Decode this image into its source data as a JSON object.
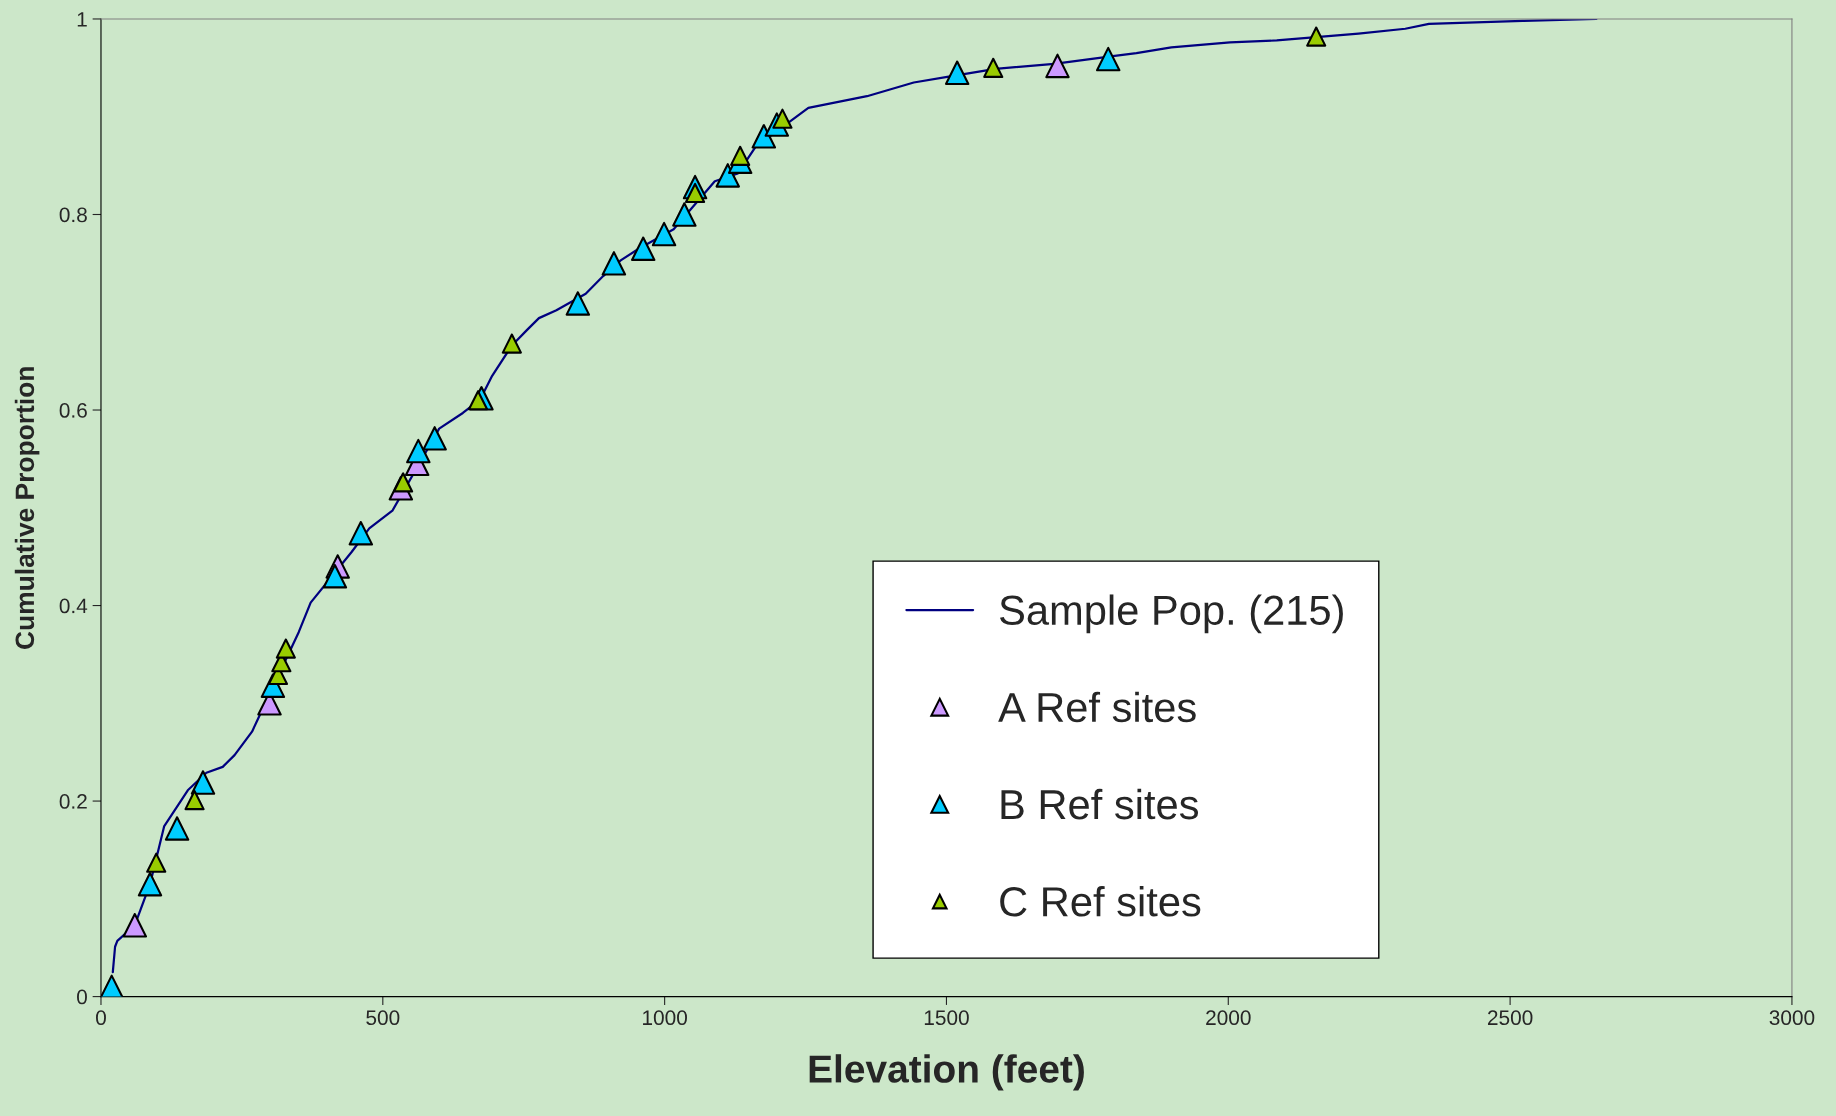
{
  "chart_data": {
    "type": "scatter",
    "xlabel": "Elevation (feet)",
    "ylabel": "Cumulative Proportion",
    "xlim": [
      0,
      3000
    ],
    "xticks": [
      0,
      500,
      1000,
      1500,
      2000,
      2500,
      3000
    ],
    "ylim": [
      0,
      1
    ],
    "yticks": [
      0,
      0.2,
      0.4,
      0.6,
      0.8,
      1
    ],
    "grid": false,
    "legend": "lower right",
    "marker": "triangle",
    "series": [
      {
        "name": "Sample Pop. (215)",
        "type": "line",
        "color": "#000080",
        "marker": "none",
        "line_style": "solid",
        "x": [
          21,
          25,
          29,
          60,
          87,
          112,
          154,
          187,
          216,
          237,
          268,
          351,
          372,
          445,
          476,
          517,
          600,
          642,
          673,
          694,
          729,
          756,
          777,
          808,
          860,
          891,
          922,
          954,
          1016,
          1089,
          1130,
          1161,
          1255,
          1359,
          1442,
          1504,
          1587,
          1691,
          1795,
          1837,
          1899,
          2003,
          2086,
          2231,
          2314,
          2356,
          2522,
          2653
        ],
        "values": [
          0.025,
          0.051,
          0.057,
          0.073,
          0.115,
          0.174,
          0.211,
          0.229,
          0.235,
          0.247,
          0.271,
          0.373,
          0.403,
          0.455,
          0.479,
          0.497,
          0.581,
          0.597,
          0.611,
          0.635,
          0.666,
          0.682,
          0.694,
          0.702,
          0.719,
          0.737,
          0.753,
          0.765,
          0.785,
          0.834,
          0.842,
          0.869,
          0.909,
          0.921,
          0.935,
          0.941,
          0.949,
          0.954,
          0.962,
          0.965,
          0.971,
          0.976,
          0.978,
          0.985,
          0.99,
          0.995,
          0.998,
          1.0
        ]
      },
      {
        "name": "A Ref sites",
        "color": "#cc99ff",
        "x": [
          60,
          299,
          420,
          532,
          561,
          1697
        ],
        "values": [
          0.073,
          0.3,
          0.44,
          0.52,
          0.545,
          0.952
        ]
      },
      {
        "name": "B Ref sites",
        "color": "#00ccff",
        "x": [
          19,
          87,
          135,
          181,
          305,
          415,
          461,
          563,
          592,
          675,
          846,
          910,
          962,
          999,
          1035,
          1054,
          1112,
          1134,
          1176,
          1199,
          1519,
          1787
        ],
        "values": [
          0.01,
          0.115,
          0.172,
          0.219,
          0.318,
          0.43,
          0.474,
          0.558,
          0.571,
          0.612,
          0.709,
          0.75,
          0.765,
          0.78,
          0.8,
          0.828,
          0.84,
          0.854,
          0.88,
          0.892,
          0.945,
          0.959
        ]
      },
      {
        "name": "C Ref sites",
        "color": "#99cc00",
        "x": [
          98,
          166,
          314,
          320,
          328,
          536,
          669,
          729,
          1054,
          1134,
          1209,
          1583,
          2156
        ],
        "values": [
          0.137,
          0.201,
          0.329,
          0.342,
          0.356,
          0.526,
          0.61,
          0.668,
          0.822,
          0.86,
          0.898,
          0.95,
          0.982
        ]
      }
    ]
  }
}
